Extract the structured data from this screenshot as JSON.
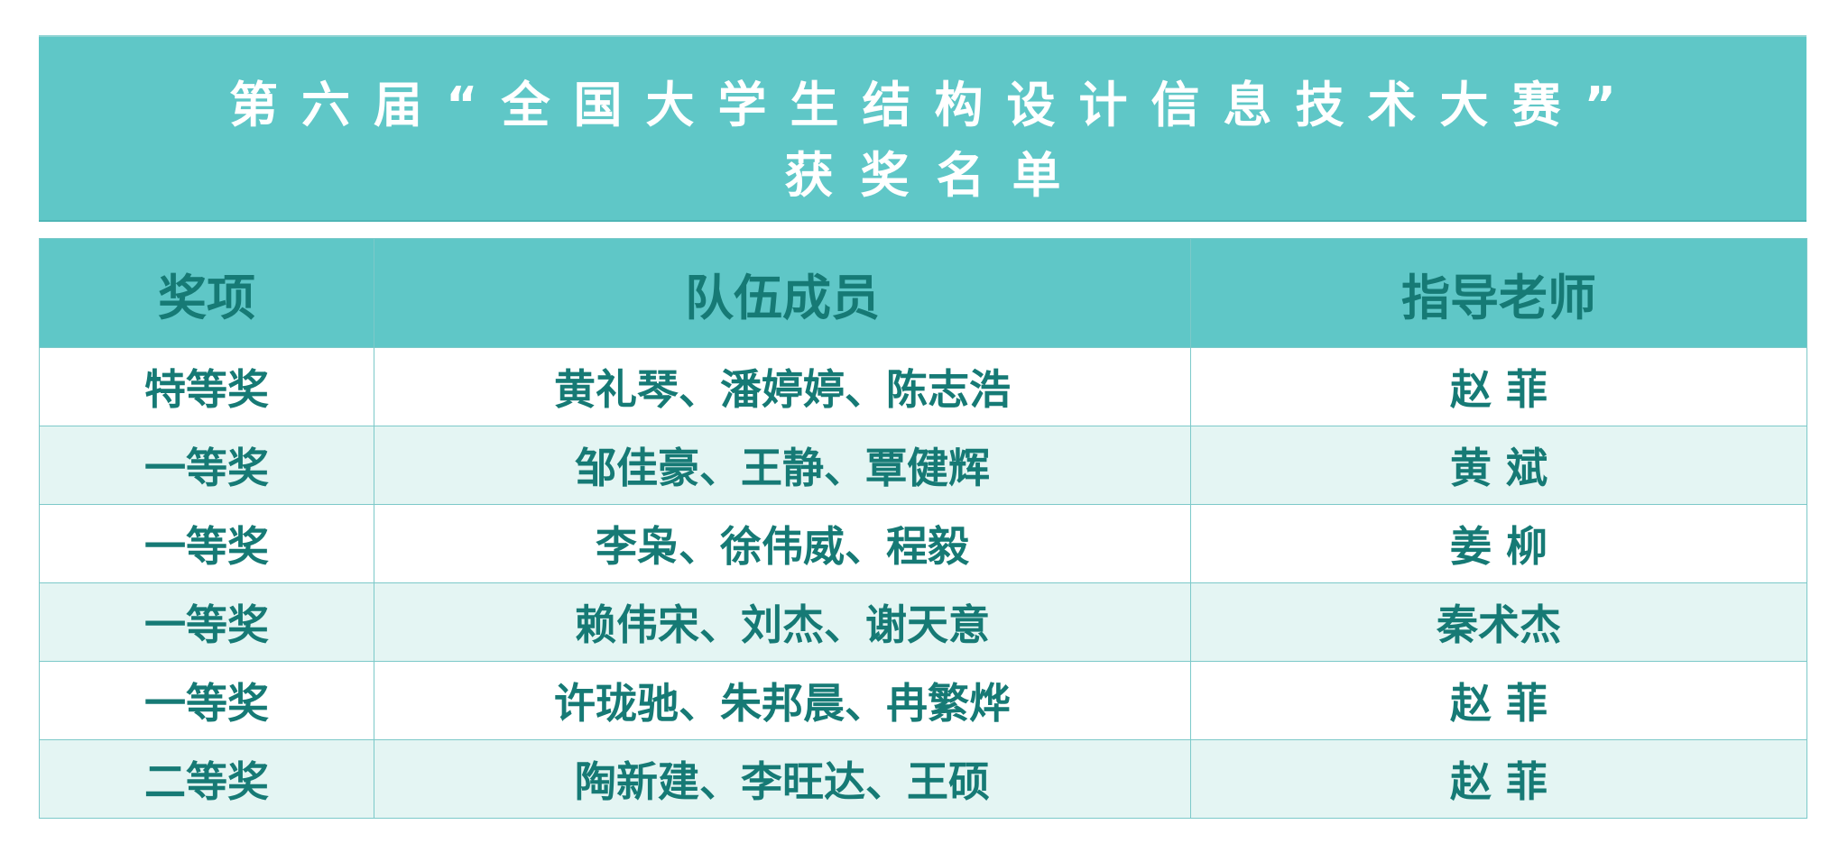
{
  "title": {
    "line1": "第六届“全国大学生结构设计信息技术大赛”",
    "line2": "获奖名单"
  },
  "table": {
    "headers": [
      "奖项",
      "队伍成员",
      "指导老师"
    ],
    "rows": [
      {
        "award": "特等奖",
        "members": "黄礼琴、潘婷婷、陈志浩",
        "advisor": "赵 菲"
      },
      {
        "award": "一等奖",
        "members": "邹佳豪、王静、覃健辉",
        "advisor": "黄 斌"
      },
      {
        "award": "一等奖",
        "members": "李枭、徐伟威、程毅",
        "advisor": "姜 柳"
      },
      {
        "award": "一等奖",
        "members": "赖伟宋、刘杰、谢天意",
        "advisor": "秦术杰"
      },
      {
        "award": "一等奖",
        "members": "许珑驰、朱邦晨、冉繁烨",
        "advisor": "赵 菲"
      },
      {
        "award": "二等奖",
        "members": "陶新建、李旺达、王硕",
        "advisor": "赵 菲"
      }
    ]
  },
  "colors": {
    "header_bg": "#5fc7c7",
    "text": "#167a75",
    "alt_row": "#e4f5f3"
  }
}
